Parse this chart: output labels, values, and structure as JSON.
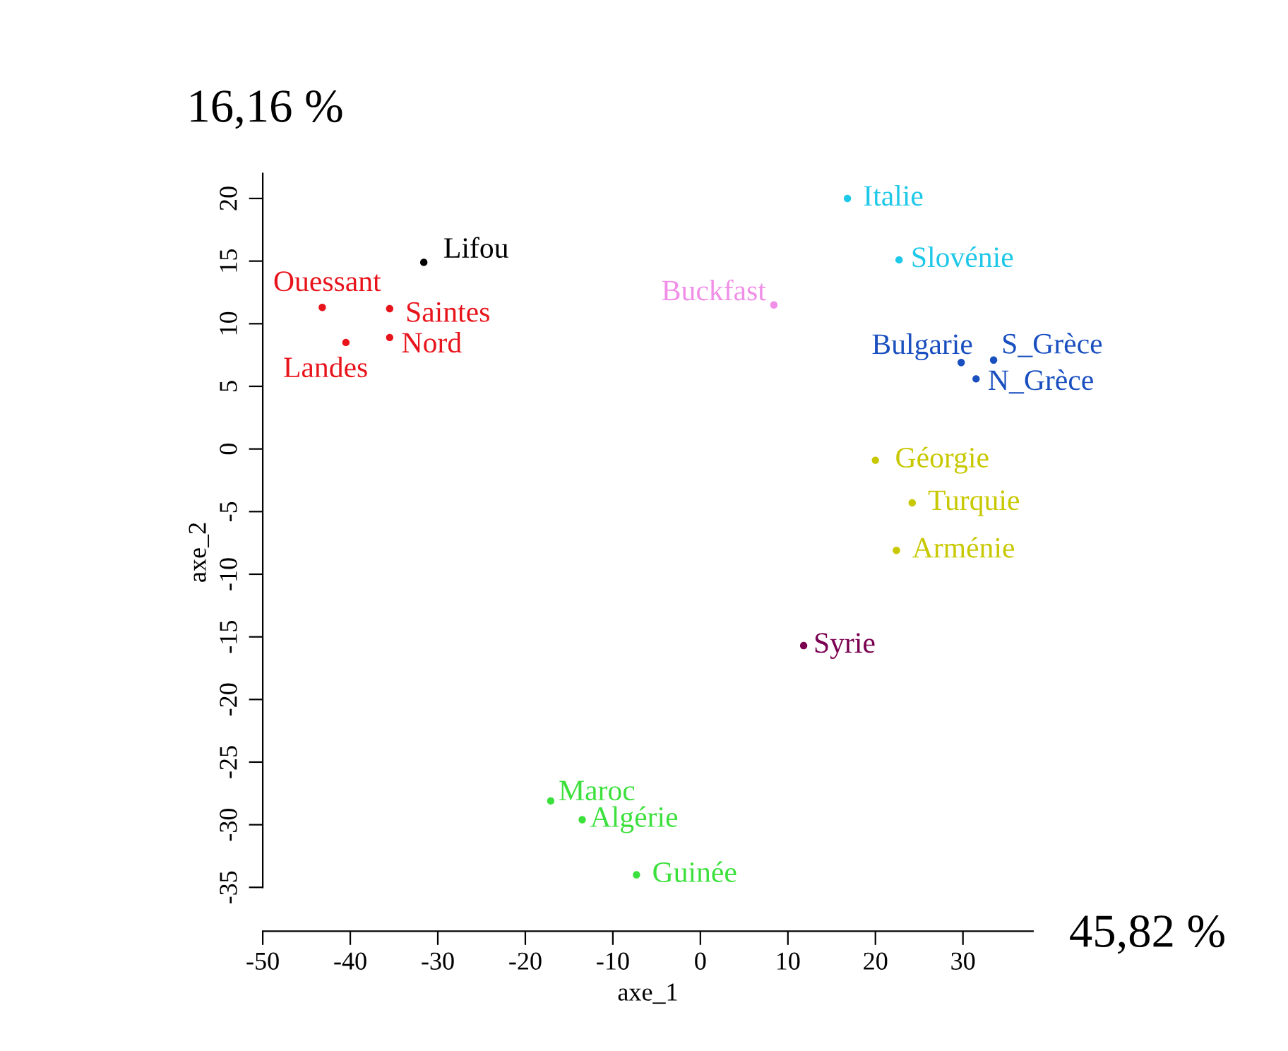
{
  "chart_data": {
    "type": "scatter",
    "xlabel": "axe_1",
    "ylabel": "axe_2",
    "xlim": [
      -50,
      38
    ],
    "ylim": [
      -38.5,
      22
    ],
    "xticks": [
      -50,
      -40,
      -30,
      -20,
      -10,
      0,
      10,
      20,
      30
    ],
    "yticks": [
      -35,
      -30,
      -25,
      -20,
      -15,
      -10,
      -5,
      0,
      5,
      10,
      15,
      20
    ],
    "grid": false,
    "legend": false,
    "marker": "circle",
    "annotations": [
      "16,16 %",
      "45,82 %"
    ],
    "series": [
      {
        "name": "Lifou",
        "color": "#000000",
        "x": [
          -31.6
        ],
        "values": [
          14.9
        ]
      },
      {
        "name": "Ouessant",
        "color": "#e8141c",
        "x": [
          -43.2
        ],
        "values": [
          11.3
        ]
      },
      {
        "name": "Saintes",
        "color": "#e8141c",
        "x": [
          -35.5
        ],
        "values": [
          11.2
        ]
      },
      {
        "name": "Nord",
        "color": "#e8141c",
        "x": [
          -35.5
        ],
        "values": [
          8.9
        ]
      },
      {
        "name": "Landes",
        "color": "#e8141c",
        "x": [
          -40.5
        ],
        "values": [
          8.5
        ]
      },
      {
        "name": "Buckfast",
        "color": "#f08ee8",
        "x": [
          8.4
        ],
        "values": [
          11.5
        ]
      },
      {
        "name": "Italie",
        "color": "#1ec8e8",
        "x": [
          16.8
        ],
        "values": [
          20.0
        ]
      },
      {
        "name": "Slovénie",
        "color": "#1ec8e8",
        "x": [
          22.7
        ],
        "values": [
          15.1
        ]
      },
      {
        "name": "Bulgarie",
        "color": "#1a4fc0",
        "x": [
          29.8
        ],
        "values": [
          6.9
        ]
      },
      {
        "name": "S_Grèce",
        "color": "#1a4fc0",
        "x": [
          33.5
        ],
        "values": [
          7.1
        ]
      },
      {
        "name": "N_Grèce",
        "color": "#1a4fc0",
        "x": [
          31.5
        ],
        "values": [
          5.6
        ]
      },
      {
        "name": "Géorgie",
        "color": "#c8c800",
        "x": [
          20.0
        ],
        "values": [
          -0.9
        ]
      },
      {
        "name": "Turquie",
        "color": "#c8c800",
        "x": [
          24.2
        ],
        "values": [
          -4.3
        ]
      },
      {
        "name": "Arménie",
        "color": "#c8c800",
        "x": [
          22.4
        ],
        "values": [
          -8.1
        ]
      },
      {
        "name": "Syrie",
        "color": "#7a0050",
        "x": [
          11.8
        ],
        "values": [
          -15.7
        ]
      },
      {
        "name": "Maroc",
        "color": "#3ce03c",
        "x": [
          -17.1
        ],
        "values": [
          -28.1
        ]
      },
      {
        "name": "Algérie",
        "color": "#3ce03c",
        "x": [
          -13.5
        ],
        "values": [
          -29.6
        ]
      },
      {
        "name": "Guinée",
        "color": "#3ce03c",
        "x": [
          -7.3
        ],
        "values": [
          -34.0
        ]
      }
    ]
  }
}
